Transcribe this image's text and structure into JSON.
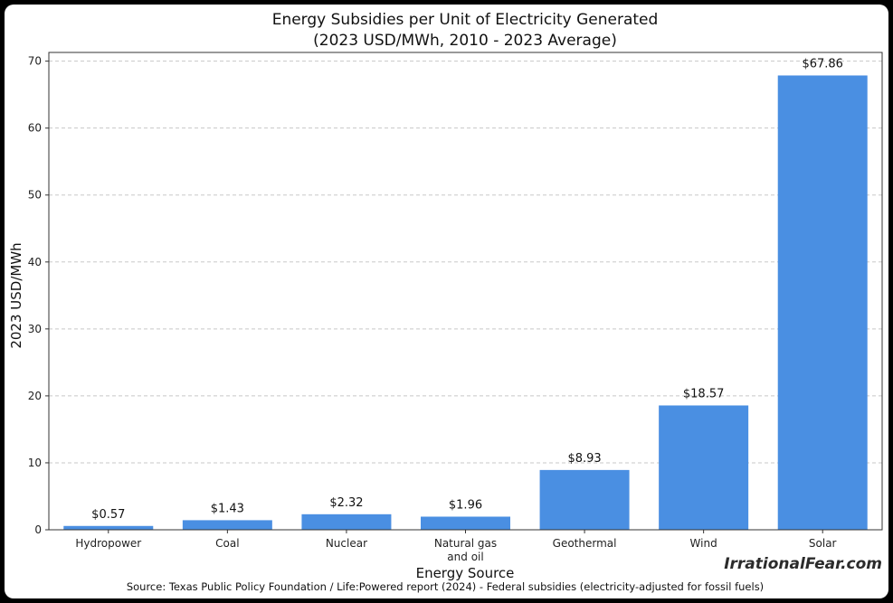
{
  "chart_data": {
    "type": "bar",
    "title": "Energy Subsidies per Unit of Electricity Generated",
    "subtitle": "(2023 USD/MWh, 2010 - 2023 Average)",
    "xlabel": "Energy Source",
    "ylabel": "2023 USD/MWh",
    "categories": [
      [
        "Hydropower"
      ],
      [
        "Coal"
      ],
      [
        "Nuclear"
      ],
      [
        "Natural gas",
        "and oil"
      ],
      [
        "Geothermal"
      ],
      [
        "Wind"
      ],
      [
        "Solar"
      ]
    ],
    "values": [
      0.57,
      1.43,
      2.32,
      1.96,
      8.93,
      18.57,
      67.86
    ],
    "data_labels": [
      "$0.57",
      "$1.43",
      "$2.32",
      "$1.96",
      "$8.93",
      "$18.57",
      "$67.86"
    ],
    "ylim": [
      0,
      71.3
    ],
    "yticks": [
      0,
      10,
      20,
      30,
      40,
      50,
      60,
      70
    ],
    "grid": true,
    "bar_color": "#4a8fe2",
    "source": "Source: Texas Public Policy Foundation / Life:Powered report (2024) - Federal subsidies (electricity-adjusted for fossil fuels)"
  },
  "watermark": "IrrationalFear.com"
}
